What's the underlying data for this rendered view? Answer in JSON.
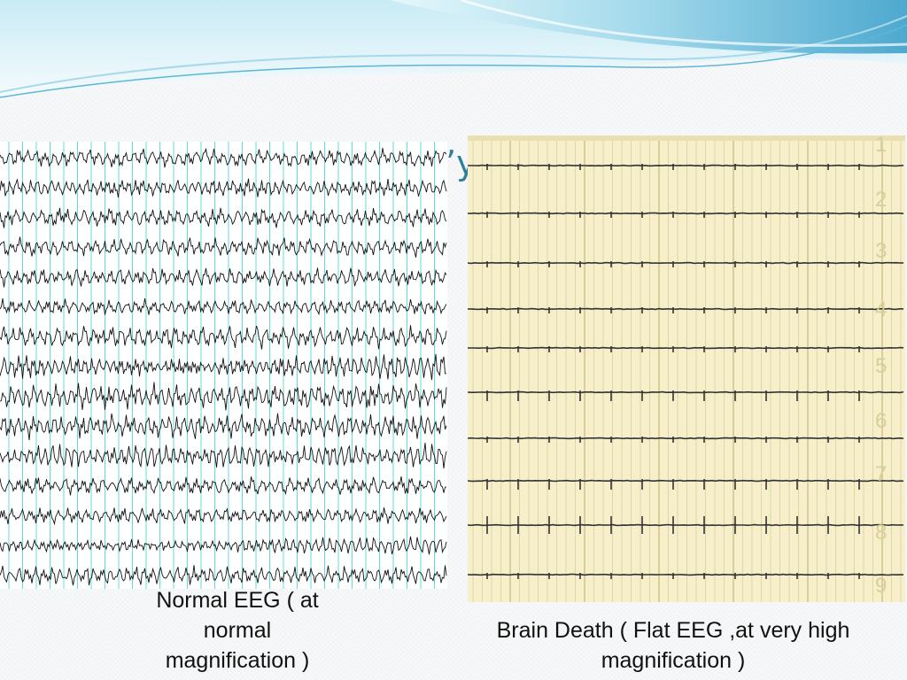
{
  "slide": {
    "title_fragment": "’y",
    "colors": {
      "title": "#2f7f9a",
      "wave_light": "#bfe6f1",
      "wave_mid": "#76c3de",
      "wave_dark": "#2f8fb6",
      "normal_trace": "#111111",
      "normal_grid": "#2fd3c7",
      "flat_bg": "#f6efc9",
      "flat_trace": "#333333"
    }
  },
  "images": {
    "normal_eeg": {
      "icon": "normal-eeg-tracing",
      "channel_count": 15
    },
    "flat_eeg": {
      "icon": "flat-eeg-tracing",
      "channel_labels": [
        "1",
        "2",
        "3",
        "4",
        "5",
        "6",
        "7",
        "8",
        "9"
      ],
      "header_left_text": "",
      "header_right_text": ""
    }
  },
  "captions": {
    "normal": {
      "line1": "Normal EEG ( at",
      "line2": "normal",
      "line3": "magnification )"
    },
    "flat": {
      "line1": "Brain Death ( Flat EEG ,at very high",
      "line2": "magnification )"
    }
  }
}
